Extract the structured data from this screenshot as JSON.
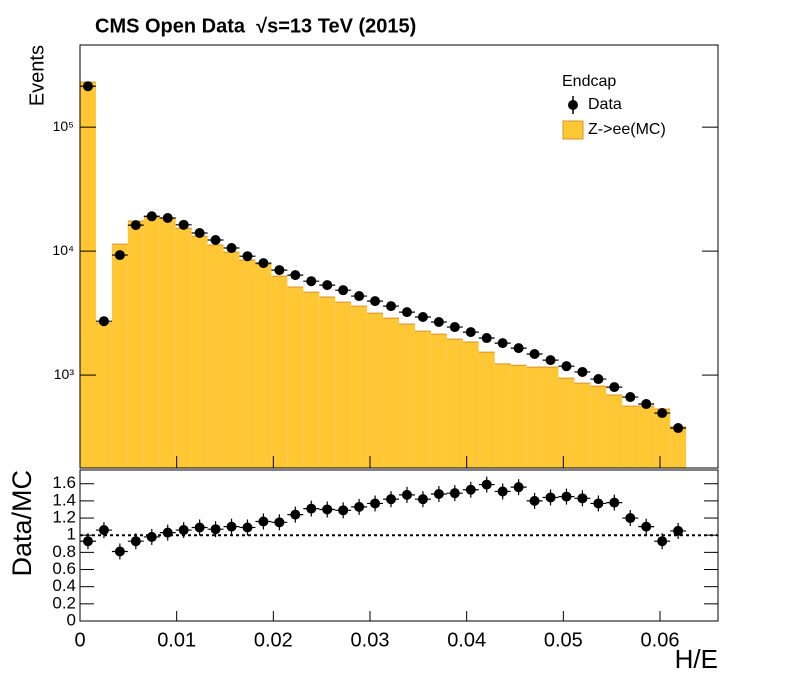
{
  "chart_data": [
    {
      "type": "histogram",
      "title": "CMS Open Data  √s=13 TeV (2015)",
      "y_label": "Events",
      "legend_title": "Endcap",
      "log_y": true,
      "bins": [
        0,
        0.00165,
        0.0033,
        0.00495,
        0.0066,
        0.00825,
        0.0099,
        0.01155,
        0.0132,
        0.01485,
        0.0165,
        0.01815,
        0.0198,
        0.02145,
        0.0231,
        0.02475,
        0.0264,
        0.02805,
        0.0297,
        0.03135,
        0.033,
        0.03465,
        0.0363,
        0.03795,
        0.0396,
        0.04125,
        0.0429,
        0.04455,
        0.0462,
        0.04785,
        0.0495,
        0.05115,
        0.0528,
        0.05445,
        0.0561,
        0.05775,
        0.0594,
        0.06105,
        0.0627
      ],
      "xlim": [
        0,
        0.066
      ],
      "ylim": [
        178,
        460000
      ],
      "yticks": [
        {
          "value": 1000,
          "label": "10³"
        },
        {
          "value": 10000,
          "label": "10⁴"
        },
        {
          "value": 100000,
          "label": "10⁵"
        }
      ],
      "series": [
        {
          "name": "Data",
          "color": "#000000",
          "style": "points",
          "values": [
            214000,
            2720,
            9290,
            16200,
            19100,
            18500,
            16300,
            14000,
            12300,
            10600,
            9100,
            8000,
            7030,
            6400,
            5720,
            5320,
            4840,
            4340,
            3950,
            3600,
            3220,
            2940,
            2680,
            2440,
            2220,
            1990,
            1810,
            1650,
            1480,
            1320,
            1180,
            1060,
            929,
            800,
            665,
            584,
            494,
            374
          ]
        },
        {
          "name": "Z->ee(MC)",
          "color": "#ffc733",
          "style": "filled",
          "values": [
            231000,
            2630,
            11400,
            17500,
            18800,
            18500,
            15300,
            13200,
            11200,
            9820,
            8470,
            7860,
            6280,
            5130,
            4670,
            4260,
            3880,
            3600,
            3160,
            2880,
            2580,
            2260,
            2140,
            1950,
            1850,
            1530,
            1230,
            1200,
            1160,
            1160,
            945,
            862,
            815,
            690,
            562,
            562,
            532,
            381
          ]
        }
      ]
    },
    {
      "type": "ratio",
      "y_label": "Data/MC",
      "x_label": "H/E",
      "xlim": [
        0,
        0.066
      ],
      "xticks": [
        0,
        0.01,
        0.02,
        0.03,
        0.04,
        0.05,
        0.06
      ],
      "ylim": [
        0,
        1.76
      ],
      "yticks": [
        0,
        0.2,
        0.4,
        0.6,
        0.8,
        1,
        1.2,
        1.4,
        1.6
      ],
      "hline": 1,
      "color": "#000000",
      "values": [
        0.93,
        1.06,
        0.81,
        0.93,
        0.98,
        1.03,
        1.06,
        1.09,
        1.07,
        1.1,
        1.09,
        1.16,
        1.15,
        1.24,
        1.31,
        1.3,
        1.29,
        1.33,
        1.37,
        1.42,
        1.47,
        1.42,
        1.48,
        1.49,
        1.53,
        1.59,
        1.51,
        1.56,
        1.4,
        1.44,
        1.45,
        1.43,
        1.37,
        1.38,
        1.2,
        1.1,
        0.93,
        1.05
      ]
    }
  ]
}
